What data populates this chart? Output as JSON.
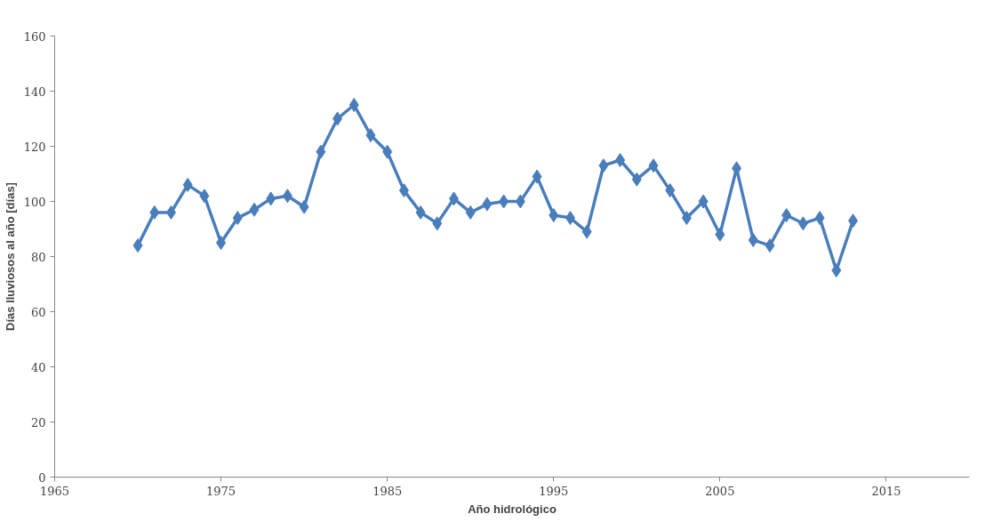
{
  "chart_data": {
    "type": "line",
    "xlabel": "Año hidrológico",
    "ylabel": "Días lluviosos al año [días]",
    "x": [
      1970,
      1971,
      1972,
      1973,
      1974,
      1975,
      1976,
      1977,
      1978,
      1979,
      1980,
      1981,
      1982,
      1983,
      1984,
      1985,
      1986,
      1987,
      1988,
      1989,
      1990,
      1991,
      1992,
      1993,
      1994,
      1995,
      1996,
      1997,
      1998,
      1999,
      2000,
      2001,
      2002,
      2003,
      2004,
      2005,
      2006,
      2007,
      2008,
      2009,
      2010,
      2011,
      2012,
      2013
    ],
    "series": [
      {
        "color": "#4a7ebb",
        "values": [
          84,
          96,
          96,
          106,
          102,
          85,
          94,
          97,
          101,
          102,
          98,
          118,
          130,
          135,
          124,
          118,
          104,
          96,
          92,
          101,
          96,
          99,
          100,
          100,
          109,
          95,
          94,
          89,
          113,
          115,
          108,
          113,
          104,
          94,
          100,
          88,
          112,
          86,
          84,
          95,
          92,
          94,
          75,
          93
        ]
      }
    ],
    "xlim": [
      1965,
      2020
    ],
    "xticks": [
      1965,
      1975,
      1985,
      1995,
      2005,
      2015
    ],
    "ylim": [
      0,
      160
    ],
    "yticks": [
      0,
      20,
      40,
      60,
      80,
      100,
      120,
      140,
      160
    ],
    "grid": false,
    "marker": "diamond",
    "line_style": "solid"
  }
}
